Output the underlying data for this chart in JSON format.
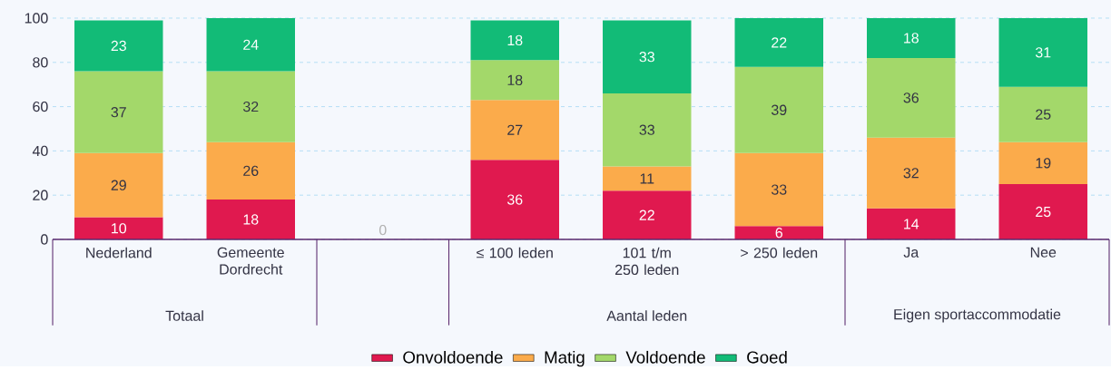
{
  "chart_data": {
    "type": "bar",
    "stacked": true,
    "categories": [
      "Nederland",
      "Gemeente Dordrecht",
      null,
      "≤ 100 leden",
      "101 t/m 250 leden",
      "> 250 leden",
      "Ja",
      "Nee"
    ],
    "series": [
      {
        "name": "Onvoldoende",
        "color": "#e0194f",
        "values": [
          10,
          18,
          0,
          36,
          22,
          6,
          14,
          25
        ],
        "value_labels": [
          "10",
          "18",
          "0",
          "36",
          "22",
          "6",
          "14",
          "25"
        ]
      },
      {
        "name": "Matig",
        "color": "#fbab4b",
        "values": [
          29,
          26,
          null,
          27,
          11,
          33,
          32,
          19
        ],
        "value_labels": [
          "29",
          "26",
          null,
          "27",
          "11",
          "33",
          "32",
          "19"
        ]
      },
      {
        "name": "Voldoende",
        "color": "#a3d86a",
        "values": [
          37,
          32,
          null,
          18,
          33,
          39,
          36,
          25
        ],
        "value_labels": [
          "37",
          "32",
          null,
          "18",
          "33",
          "39",
          "36",
          "25"
        ]
      },
      {
        "name": "Goed",
        "color": "#12bb77",
        "values": [
          23,
          24,
          null,
          18,
          33,
          22,
          18,
          31
        ],
        "value_labels": [
          "23",
          "24",
          null,
          "18",
          "33",
          "22",
          "18",
          "31"
        ]
      }
    ],
    "annotations": [
      "Totaal",
      "Aantal leden",
      "Eigen sportaccommodatie"
    ],
    "ylim": [
      0,
      100
    ],
    "yticks": [
      0,
      20,
      40,
      60,
      80,
      100
    ],
    "grid": "y",
    "legend": "bottom"
  }
}
